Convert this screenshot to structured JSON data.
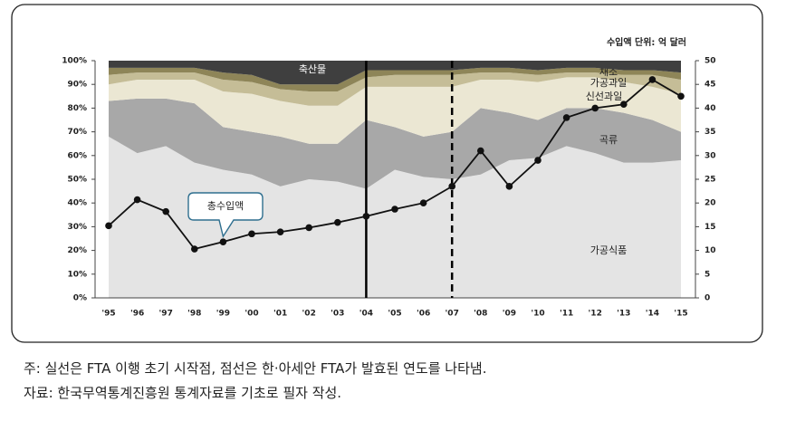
{
  "chart_data": {
    "type": "area",
    "stacked": true,
    "y2_label": "수입액 단위: 억 달러",
    "categories": [
      "'95",
      "'96",
      "'97",
      "'98",
      "'99",
      "'00",
      "'01",
      "'02",
      "'03",
      "'04",
      "'05",
      "'06",
      "'07",
      "'08",
      "'09",
      "'10",
      "'11",
      "'12",
      "'13",
      "'14",
      "'15"
    ],
    "series": [
      {
        "name": "가공식품",
        "color": "#e4e4e4",
        "values": [
          68,
          61,
          64,
          57,
          54,
          52,
          47,
          50,
          49,
          46,
          54,
          51,
          50,
          52,
          58,
          59,
          64,
          61,
          57,
          57,
          58
        ]
      },
      {
        "name": "곡류",
        "color": "#a8a8a8",
        "values": [
          15,
          23,
          20,
          25,
          18,
          18,
          21,
          15,
          16,
          29,
          18,
          17,
          20,
          28,
          20,
          16,
          16,
          19,
          21,
          18,
          12
        ]
      },
      {
        "name": "신선과일",
        "color": "#ebe7d3",
        "values": [
          7,
          8,
          8,
          10,
          15,
          16,
          15,
          16,
          16,
          14,
          17,
          21,
          19,
          12,
          14,
          16,
          13,
          13,
          13,
          14,
          16
        ]
      },
      {
        "name": "가공과일",
        "color": "#c5bd97",
        "values": [
          4,
          3,
          3,
          3,
          5,
          5,
          5,
          6,
          6,
          4,
          5,
          5,
          5,
          3,
          3,
          3,
          2,
          2,
          3,
          5,
          6
        ]
      },
      {
        "name": "채소",
        "color": "#8e8558",
        "values": [
          3,
          2,
          2,
          2,
          3,
          3,
          2,
          3,
          3,
          3,
          2,
          2,
          2,
          2,
          2,
          2,
          2,
          2,
          2,
          2,
          3
        ]
      },
      {
        "name": "축산물",
        "color": "#3f3f3f",
        "values": [
          3,
          3,
          3,
          3,
          5,
          6,
          10,
          10,
          10,
          4,
          4,
          4,
          4,
          3,
          3,
          4,
          3,
          3,
          4,
          4,
          5
        ]
      },
      {
        "name": "총수입액",
        "type": "line",
        "axis": "y2",
        "color": "#111111",
        "values": [
          15.2,
          20.7,
          18.2,
          10.3,
          11.8,
          13.5,
          13.9,
          14.8,
          15.9,
          17.2,
          18.7,
          20,
          23.5,
          31,
          23.5,
          29,
          38,
          40,
          40.8,
          46,
          42.5
        ]
      }
    ],
    "ylim": [
      0,
      100
    ],
    "yticks": [
      {
        "value": 0,
        "label": "0%"
      },
      {
        "value": 10,
        "label": "10%"
      },
      {
        "value": 20,
        "label": "20%"
      },
      {
        "value": 30,
        "label": "30%"
      },
      {
        "value": 40,
        "label": "40%"
      },
      {
        "value": 50,
        "label": "50%"
      },
      {
        "value": 60,
        "label": "60%"
      },
      {
        "value": 70,
        "label": "70%"
      },
      {
        "value": 80,
        "label": "80%"
      },
      {
        "value": 90,
        "label": "90%"
      },
      {
        "value": 100,
        "label": "100%"
      }
    ],
    "y2lim": [
      0,
      50
    ],
    "y2ticks": [
      0,
      5,
      10,
      15,
      20,
      25,
      30,
      35,
      40,
      45,
      50
    ],
    "vlines": [
      {
        "category": "'04",
        "style": "solid"
      },
      {
        "category": "'07",
        "style": "dashed"
      }
    ]
  },
  "notes": [
    "주: 실선은 FTA 이행 초기 시작점, 점선은 한·아세안 FTA가 발효된 연도를 나타냄.",
    "자료: 한국무역통계진흥원 통계자료를 기초로 필자 작성."
  ]
}
